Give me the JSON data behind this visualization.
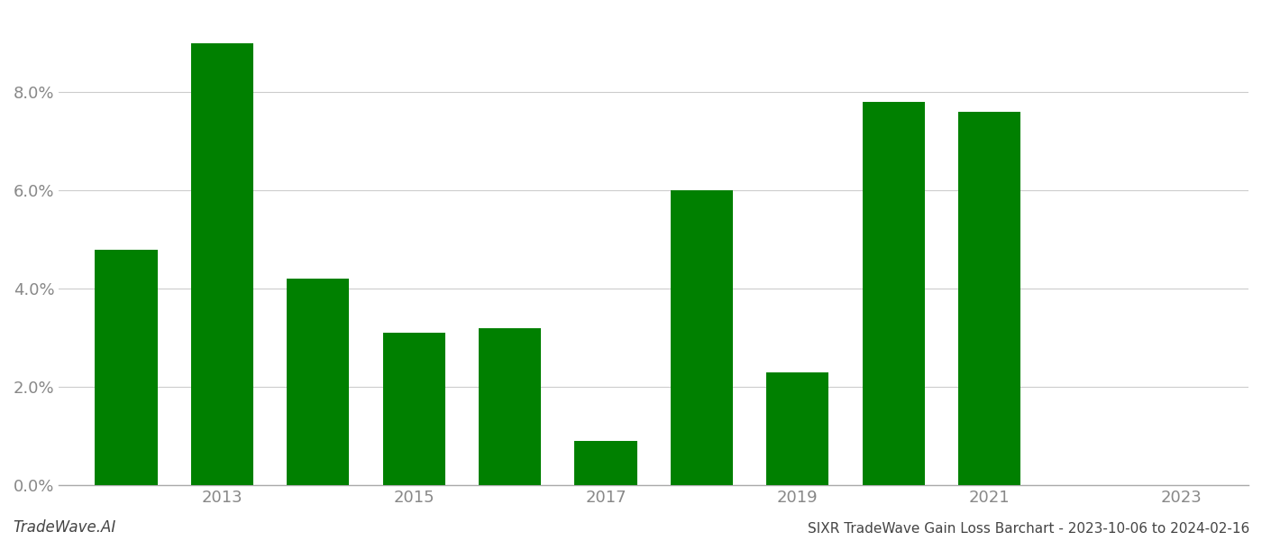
{
  "years": [
    2012,
    2013,
    2014,
    2015,
    2016,
    2017,
    2018,
    2019,
    2020,
    2021,
    2022
  ],
  "values": [
    0.048,
    0.09,
    0.042,
    0.031,
    0.032,
    0.009,
    0.06,
    0.023,
    0.078,
    0.076,
    0.0
  ],
  "bar_color": "#008000",
  "background_color": "#ffffff",
  "grid_color": "#cccccc",
  "axis_color": "#aaaaaa",
  "tick_label_color": "#888888",
  "footer_left": "TradeWave.AI",
  "footer_right": "SIXR TradeWave Gain Loss Barchart - 2023-10-06 to 2024-02-16",
  "ylim": [
    0,
    0.096
  ],
  "yticks": [
    0.0,
    0.02,
    0.04,
    0.06,
    0.08
  ],
  "xtick_positions": [
    2013,
    2015,
    2017,
    2019,
    2021,
    2023
  ],
  "xlim_min": 2011.3,
  "xlim_max": 2023.7,
  "bar_width": 0.65
}
